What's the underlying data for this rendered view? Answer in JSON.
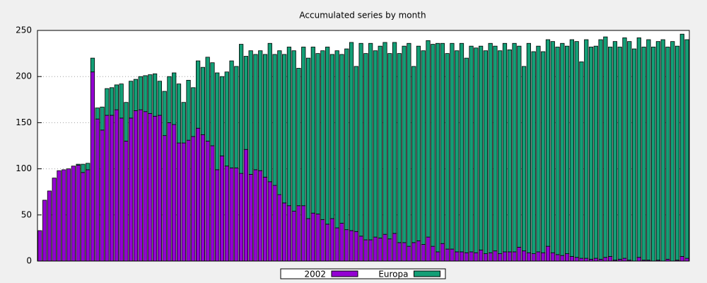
{
  "chart_data": {
    "type": "bar",
    "stacked": true,
    "title": "Accumulated series by month",
    "categories": [
      null,
      null,
      null,
      null,
      null,
      null,
      null,
      null,
      null,
      null,
      null,
      null,
      null,
      null,
      null,
      null,
      null,
      null,
      null,
      null,
      null,
      null,
      null,
      null,
      null,
      null,
      null,
      null,
      null,
      null,
      null,
      null,
      null,
      null,
      null,
      null,
      null,
      null,
      null,
      null,
      null,
      null,
      null,
      null,
      null,
      null,
      null,
      null,
      null,
      null,
      null,
      null,
      null,
      null,
      null,
      null,
      null,
      null,
      null,
      null,
      null,
      null,
      null,
      null,
      null,
      null,
      null,
      null,
      null,
      null,
      null,
      null,
      null,
      null,
      null,
      null,
      null,
      null,
      null,
      null,
      null,
      null,
      null,
      null,
      null,
      null,
      null,
      null,
      null,
      null,
      null,
      null,
      null,
      null,
      null,
      null,
      null,
      null,
      null,
      null,
      null,
      null,
      null,
      null,
      null,
      null,
      null,
      null,
      null,
      null,
      null,
      null,
      null,
      null,
      null,
      null,
      null,
      null,
      null,
      null,
      null,
      null,
      null,
      null,
      null,
      null,
      null,
      null,
      null,
      null,
      null,
      null,
      null,
      null,
      null,
      null
    ],
    "series": [
      {
        "name": "2002",
        "color": "#9400d3",
        "values": [
          33,
          66,
          76,
          90,
          98,
          99,
          100,
          103,
          104,
          96,
          99,
          205,
          154,
          142,
          158,
          158,
          164,
          155,
          130,
          155,
          163,
          164,
          162,
          160,
          157,
          158,
          136,
          150,
          148,
          128,
          128,
          131,
          135,
          144,
          137,
          130,
          125,
          99,
          114,
          103,
          101,
          101,
          95,
          121,
          94,
          99,
          98,
          91,
          86,
          82,
          72,
          63,
          60,
          54,
          60,
          60,
          46,
          52,
          51,
          45,
          40,
          46,
          36,
          41,
          34,
          33,
          32,
          27,
          23,
          23,
          26,
          25,
          29,
          24,
          30,
          20,
          20,
          16,
          20,
          22,
          18,
          26,
          16,
          10,
          19,
          13,
          13,
          10,
          10,
          9,
          10,
          9,
          12,
          8,
          9,
          11,
          8,
          10,
          10,
          10,
          15,
          11,
          9,
          8,
          10,
          9,
          16,
          9,
          7,
          6,
          8,
          5,
          4,
          3,
          3,
          2,
          3,
          2,
          4,
          5,
          1,
          2,
          3,
          1,
          0,
          4,
          1,
          1,
          0,
          1,
          0,
          2,
          0,
          1,
          5,
          3
        ]
      },
      {
        "name": "Europa",
        "color": "#139f76",
        "values": [
          0,
          0,
          0,
          0,
          0,
          0,
          0,
          0,
          1,
          9,
          7,
          15,
          12,
          25,
          29,
          30,
          27,
          37,
          42,
          40,
          34,
          36,
          39,
          42,
          46,
          37,
          48,
          50,
          56,
          64,
          44,
          65,
          53,
          73,
          73,
          91,
          90,
          105,
          86,
          102,
          116,
          110,
          140,
          101,
          134,
          125,
          130,
          133,
          150,
          142,
          156,
          161,
          172,
          174,
          149,
          172,
          174,
          180,
          174,
          183,
          192,
          178,
          192,
          183,
          196,
          204,
          179,
          209,
          202,
          213,
          202,
          208,
          208,
          201,
          207,
          205,
          213,
          220,
          191,
          211,
          210,
          213,
          219,
          226,
          217,
          212,
          223,
          218,
          226,
          211,
          223,
          222,
          221,
          220,
          227,
          222,
          220,
          226,
          219,
          226,
          218,
          200,
          227,
          219,
          223,
          218,
          224,
          229,
          225,
          230,
          225,
          235,
          234,
          213,
          237,
          230,
          230,
          238,
          239,
          227,
          237,
          230,
          239,
          237,
          230,
          238,
          231,
          239,
          232,
          237,
          240,
          230,
          238,
          232,
          241,
          237
        ]
      }
    ],
    "ylim": [
      0,
      250
    ],
    "yticks": [
      0,
      50,
      100,
      150,
      200,
      250
    ],
    "grid": true,
    "legend": "bottom"
  }
}
